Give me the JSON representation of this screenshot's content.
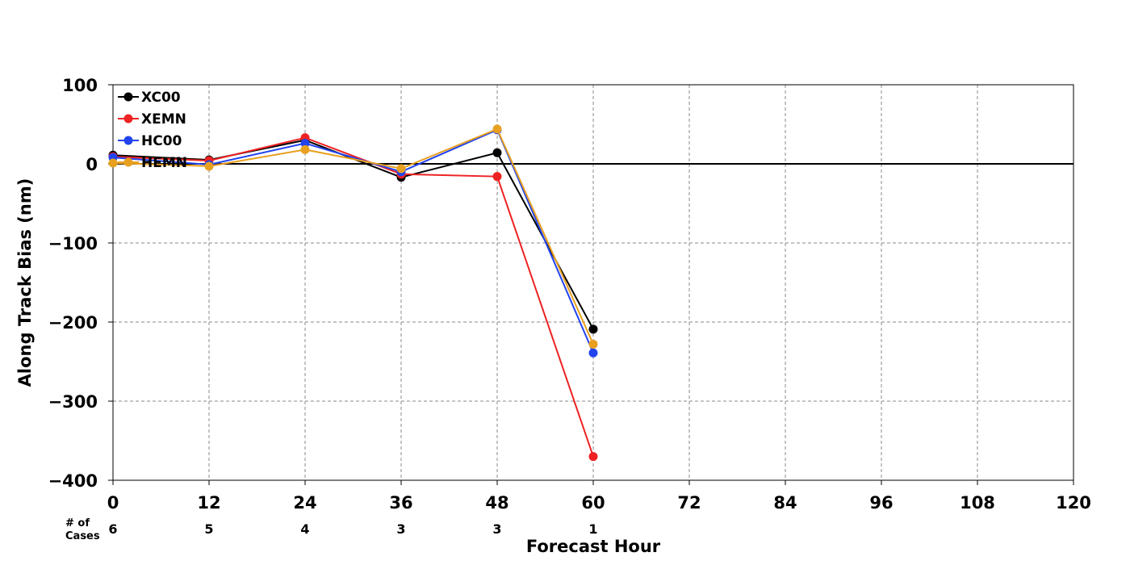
{
  "chart_data": {
    "type": "line",
    "xlabel": "Forecast Hour",
    "ylabel": "Along Track Bias (nm)",
    "xlim": [
      0,
      120
    ],
    "ylim": [
      -400,
      100
    ],
    "x_ticks": [
      0,
      12,
      24,
      36,
      48,
      60,
      72,
      84,
      96,
      108,
      120
    ],
    "y_ticks": [
      100,
      0,
      -100,
      -200,
      -300,
      -400
    ],
    "y_tick_labels": [
      "100",
      "0",
      "−100",
      "−200",
      "−300",
      "−400"
    ],
    "grid": true,
    "zero_line": true,
    "legend_position": "top-left",
    "cases_label_line1": "# of",
    "cases_label_line2": "Cases",
    "cases": [
      {
        "x": 0,
        "n": "6"
      },
      {
        "x": 12,
        "n": "5"
      },
      {
        "x": 24,
        "n": "4"
      },
      {
        "x": 36,
        "n": "3"
      },
      {
        "x": 48,
        "n": "3"
      },
      {
        "x": 60,
        "n": "1"
      }
    ],
    "series": [
      {
        "name": "XC00",
        "color": "#000000",
        "x": [
          0,
          12,
          24,
          36,
          48,
          60
        ],
        "values": [
          11,
          5,
          30,
          -17,
          14,
          -209
        ]
      },
      {
        "name": "XEMN",
        "color": "#ee2222",
        "x": [
          0,
          12,
          24,
          36,
          48,
          60
        ],
        "values": [
          9,
          4,
          33,
          -13,
          -16,
          -370
        ]
      },
      {
        "name": "HC00",
        "color": "#2244ee",
        "x": [
          0,
          12,
          24,
          36,
          48,
          60
        ],
        "values": [
          8,
          -1,
          26,
          -10,
          43,
          -239
        ]
      },
      {
        "name": "HEMN",
        "color": "#e8a020",
        "x": [
          0,
          12,
          24,
          36,
          48,
          60
        ],
        "values": [
          1,
          -3,
          18,
          -6,
          44,
          -228
        ]
      }
    ]
  }
}
